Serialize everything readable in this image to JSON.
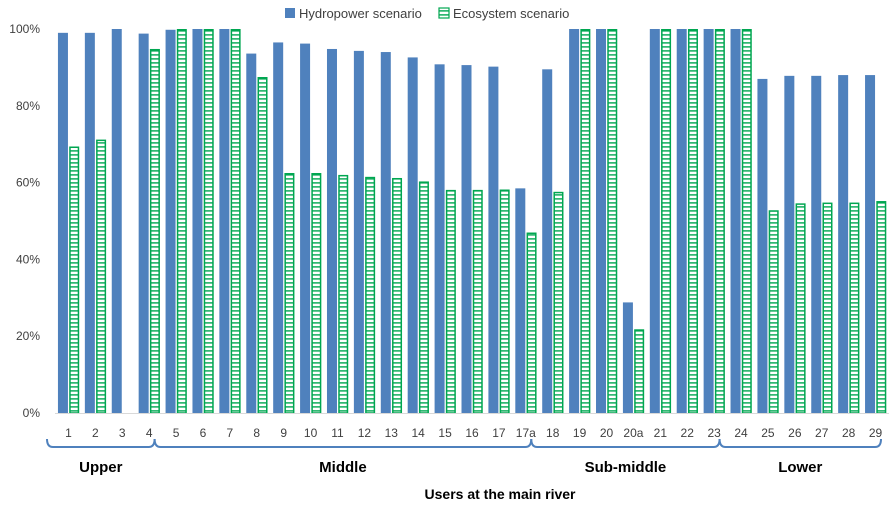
{
  "chart_data": {
    "type": "bar",
    "title": "",
    "xlabel": "Users at the main river",
    "ylabel": "",
    "ylim": [
      0,
      100
    ],
    "yticks": [
      "0%",
      "20%",
      "40%",
      "60%",
      "80%",
      "100%"
    ],
    "grid": false,
    "legend_position": "top",
    "categories": [
      "1",
      "2",
      "3",
      "4",
      "5",
      "6",
      "7",
      "8",
      "9",
      "10",
      "11",
      "12",
      "13",
      "14",
      "15",
      "16",
      "17",
      "17a",
      "18",
      "19",
      "20",
      "20a",
      "21",
      "22",
      "23",
      "24",
      "25",
      "26",
      "27",
      "28",
      "29"
    ],
    "series": [
      {
        "name": "Hydropower scenario",
        "color": "#4F81BD",
        "values": [
          99,
          99,
          100,
          98.8,
          99.8,
          100,
          100,
          93.6,
          96.5,
          96.2,
          94.8,
          94.3,
          94,
          92.6,
          90.8,
          90.6,
          90.2,
          58.5,
          89.5,
          100,
          100,
          28.8,
          100,
          100,
          100,
          100,
          87,
          87.8,
          87.8,
          88,
          88
        ]
      },
      {
        "name": "Ecosystem scenario",
        "color": "#00A651",
        "values": [
          69.4,
          71.2,
          0,
          94.8,
          100,
          100,
          100,
          87.5,
          62.5,
          62.5,
          62,
          61.5,
          61.2,
          60.3,
          58.1,
          58.1,
          58.2,
          47,
          57.6,
          100,
          100,
          21.8,
          100,
          100,
          100,
          100,
          52.8,
          54.6,
          54.8,
          54.8,
          55.2
        ]
      }
    ],
    "groups": [
      {
        "label": "Upper",
        "from": 0,
        "to": 3
      },
      {
        "label": "Middle",
        "from": 4,
        "to": 17
      },
      {
        "label": "Sub-middle",
        "from": 18,
        "to": 24
      },
      {
        "label": "Lower",
        "from": 25,
        "to": 30
      }
    ]
  }
}
